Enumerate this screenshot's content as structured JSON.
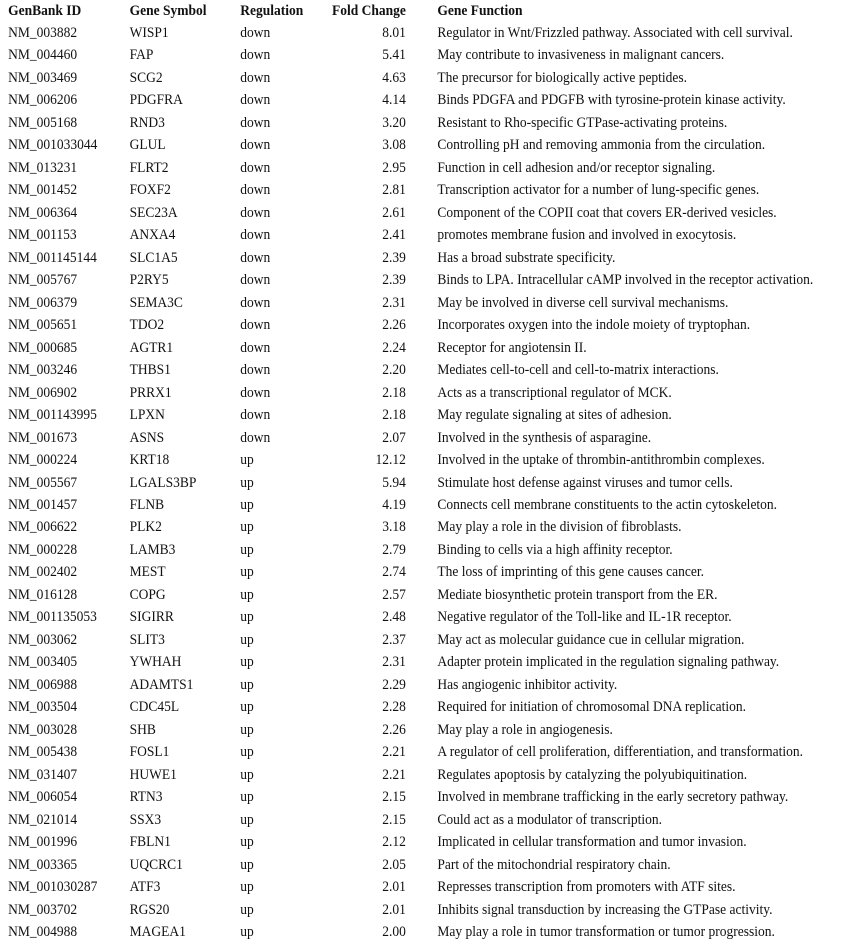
{
  "table": {
    "headers": [
      "GenBank ID",
      "Gene Symbol",
      "Regulation",
      "Fold Change",
      "Gene Function"
    ],
    "rows": [
      [
        "NM_003882",
        "WISP1",
        "down",
        "8.01",
        "Regulator in Wnt/Frizzled pathway. Associated with cell survival."
      ],
      [
        "NM_004460",
        "FAP",
        "down",
        "5.41",
        "May  contribute to invasiveness in malignant cancers."
      ],
      [
        "NM_003469",
        "SCG2",
        "down",
        "4.63",
        "The precursor for biologically active peptides."
      ],
      [
        "NM_006206",
        "PDGFRA",
        "down",
        "4.14",
        "Binds PDGFA and PDGFB with tyrosine-protein kinase activity."
      ],
      [
        "NM_005168",
        "RND3",
        "down",
        "3.20",
        "Resistant to Rho-specific GTPase-activating proteins."
      ],
      [
        "NM_001033044",
        "GLUL",
        "down",
        "3.08",
        "Controlling pH and removing ammonia from the circulation."
      ],
      [
        "NM_013231",
        "FLRT2",
        "down",
        "2.95",
        "Function in cell adhesion and/or receptor signaling."
      ],
      [
        "NM_001452",
        "FOXF2",
        "down",
        "2.81",
        "Transcription activator for a number of lung-specific genes."
      ],
      [
        "NM_006364",
        "SEC23A",
        "down",
        "2.61",
        "Component of the COPII coat that covers ER-derived vesicles."
      ],
      [
        "NM_001153",
        "ANXA4",
        "down",
        "2.41",
        "promotes membrane fusion and involved in exocytosis."
      ],
      [
        "NM_001145144",
        "SLC1A5",
        "down",
        "2.39",
        "Has a broad substrate specificity."
      ],
      [
        "NM_005767",
        "P2RY5",
        "down",
        "2.39",
        "Binds to LPA. Intracellular cAMP involved in the receptor activation."
      ],
      [
        "NM_006379",
        "SEMA3C",
        "down",
        "2.31",
        "May be involved in diverse cell survival mechanisms."
      ],
      [
        "NM_005651",
        "TDO2",
        "down",
        "2.26",
        "Incorporates oxygen into the indole moiety of tryptophan."
      ],
      [
        "NM_000685",
        "AGTR1",
        "down",
        "2.24",
        "Receptor for angiotensin II."
      ],
      [
        "NM_003246",
        "THBS1",
        "down",
        "2.20",
        "Mediates cell-to-cell and cell-to-matrix interactions."
      ],
      [
        "NM_006902",
        "PRRX1",
        "down",
        "2.18",
        "Acts as a transcriptional regulator of MCK."
      ],
      [
        "NM_001143995",
        "LPXN",
        "down",
        "2.18",
        "May regulate signaling at sites of adhesion."
      ],
      [
        "NM_001673",
        "ASNS",
        "down",
        "2.07",
        "Involved in the synthesis of asparagine."
      ],
      [
        "NM_000224",
        "KRT18",
        "up",
        "12.12",
        "Involved in the uptake of thrombin-antithrombin complexes."
      ],
      [
        "NM_005567",
        "LGALS3BP",
        "up",
        "5.94",
        "Stimulate host defense against viruses and tumor cells."
      ],
      [
        "NM_001457",
        "FLNB",
        "up",
        "4.19",
        "Connects cell membrane constituents to the actin cytoskeleton."
      ],
      [
        "NM_006622",
        "PLK2",
        "up",
        "3.18",
        "May play a role in the division of fibroblasts."
      ],
      [
        "NM_000228",
        "LAMB3",
        "up",
        "2.79",
        "Binding to cells via a high affinity receptor."
      ],
      [
        "NM_002402",
        "MEST",
        "up",
        "2.74",
        "The loss of imprinting of this gene causes cancer."
      ],
      [
        "NM_016128",
        "COPG",
        "up",
        "2.57",
        "Mediate biosynthetic protein transport from the ER."
      ],
      [
        "NM_001135053",
        "SIGIRR",
        "up",
        "2.48",
        "Negative regulator of the Toll-like and IL-1R receptor."
      ],
      [
        "NM_003062",
        "SLIT3",
        "up",
        "2.37",
        "May act as molecular guidance cue in cellular migration."
      ],
      [
        "NM_003405",
        "YWHAH",
        "up",
        "2.31",
        "Adapter protein implicated in the regulation signaling pathway."
      ],
      [
        "NM_006988",
        "ADAMTS1",
        "up",
        "2.29",
        "Has angiogenic inhibitor activity."
      ],
      [
        "NM_003504",
        "CDC45L",
        "up",
        "2.28",
        "Required for initiation of chromosomal DNA replication."
      ],
      [
        "NM_003028",
        "SHB",
        "up",
        "2.26",
        "May play a role in angiogenesis."
      ],
      [
        "NM_005438",
        "FOSL1",
        "up",
        "2.21",
        "A regulator of cell proliferation, differentiation, and transformation."
      ],
      [
        "NM_031407",
        "HUWE1",
        "up",
        "2.21",
        "Regulates apoptosis by catalyzing the polyubiquitination."
      ],
      [
        "NM_006054",
        "RTN3",
        "up",
        "2.15",
        "Involved in membrane trafficking in the early secretory pathway."
      ],
      [
        "NM_021014",
        "SSX3",
        "up",
        "2.15",
        "Could act as a modulator of transcription."
      ],
      [
        "NM_001996",
        "FBLN1",
        "up",
        "2.12",
        "Implicated in cellular transformation and tumor invasion."
      ],
      [
        "NM_003365",
        "UQCRC1",
        "up",
        "2.05",
        "Part of the mitochondrial respiratory chain."
      ],
      [
        "NM_001030287",
        "ATF3",
        "up",
        "2.01",
        "Represses transcription from promoters with ATF sites."
      ],
      [
        "NM_003702",
        "RGS20",
        "up",
        "2.01",
        "Inhibits signal transduction by increasing the GTPase activity."
      ],
      [
        "NM_004988",
        "MAGEA1",
        "up",
        "2.00",
        "May play a role in tumor transformation or tumor progression."
      ]
    ]
  }
}
